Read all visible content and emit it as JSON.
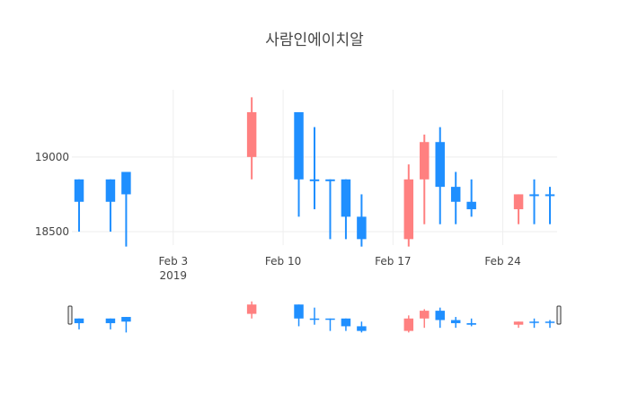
{
  "chart_data": {
    "type": "candlestick",
    "title": "사람인에이치알",
    "x_ticks": [
      "Feb 3",
      "Feb 10",
      "Feb 17",
      "Feb 24"
    ],
    "x_tick_year": "2019",
    "y_ticks": [
      18500,
      19000
    ],
    "ylim": [
      18410,
      19450
    ],
    "xlim": [
      "2019-01-28",
      "2019-02-27"
    ],
    "grid": true,
    "range_slider": true,
    "colors": {
      "increasing": "#ff8080",
      "decreasing": "#1f8fff"
    },
    "candles": [
      {
        "date": "2019-01-28",
        "open": 18850,
        "high": 18850,
        "low": 18500,
        "close": 18700
      },
      {
        "date": "2019-01-30",
        "open": 18850,
        "high": 18850,
        "low": 18500,
        "close": 18700
      },
      {
        "date": "2019-01-31",
        "open": 18900,
        "high": 18900,
        "low": 18400,
        "close": 18750
      },
      {
        "date": "2019-02-08",
        "open": 19000,
        "high": 19400,
        "low": 18850,
        "close": 19300
      },
      {
        "date": "2019-02-11",
        "open": 19300,
        "high": 19300,
        "low": 18600,
        "close": 18850
      },
      {
        "date": "2019-02-12",
        "open": 18850,
        "high": 19200,
        "low": 18650,
        "close": 18850
      },
      {
        "date": "2019-02-13",
        "open": 18850,
        "high": 18850,
        "low": 18450,
        "close": 18850
      },
      {
        "date": "2019-02-14",
        "open": 18850,
        "high": 18850,
        "low": 18450,
        "close": 18600
      },
      {
        "date": "2019-02-15",
        "open": 18600,
        "high": 18750,
        "low": 18400,
        "close": 18450
      },
      {
        "date": "2019-02-18",
        "open": 18450,
        "high": 18950,
        "low": 18400,
        "close": 18850
      },
      {
        "date": "2019-02-19",
        "open": 18850,
        "high": 19150,
        "low": 18550,
        "close": 19100
      },
      {
        "date": "2019-02-20",
        "open": 19100,
        "high": 19200,
        "low": 18550,
        "close": 18800
      },
      {
        "date": "2019-02-21",
        "open": 18800,
        "high": 18900,
        "low": 18550,
        "close": 18700
      },
      {
        "date": "2019-02-22",
        "open": 18700,
        "high": 18850,
        "low": 18600,
        "close": 18650
      },
      {
        "date": "2019-02-25",
        "open": 18650,
        "high": 18750,
        "low": 18550,
        "close": 18750
      },
      {
        "date": "2019-02-26",
        "open": 18750,
        "high": 18850,
        "low": 18550,
        "close": 18750
      },
      {
        "date": "2019-02-27",
        "open": 18750,
        "high": 18800,
        "low": 18550,
        "close": 18750
      }
    ]
  }
}
